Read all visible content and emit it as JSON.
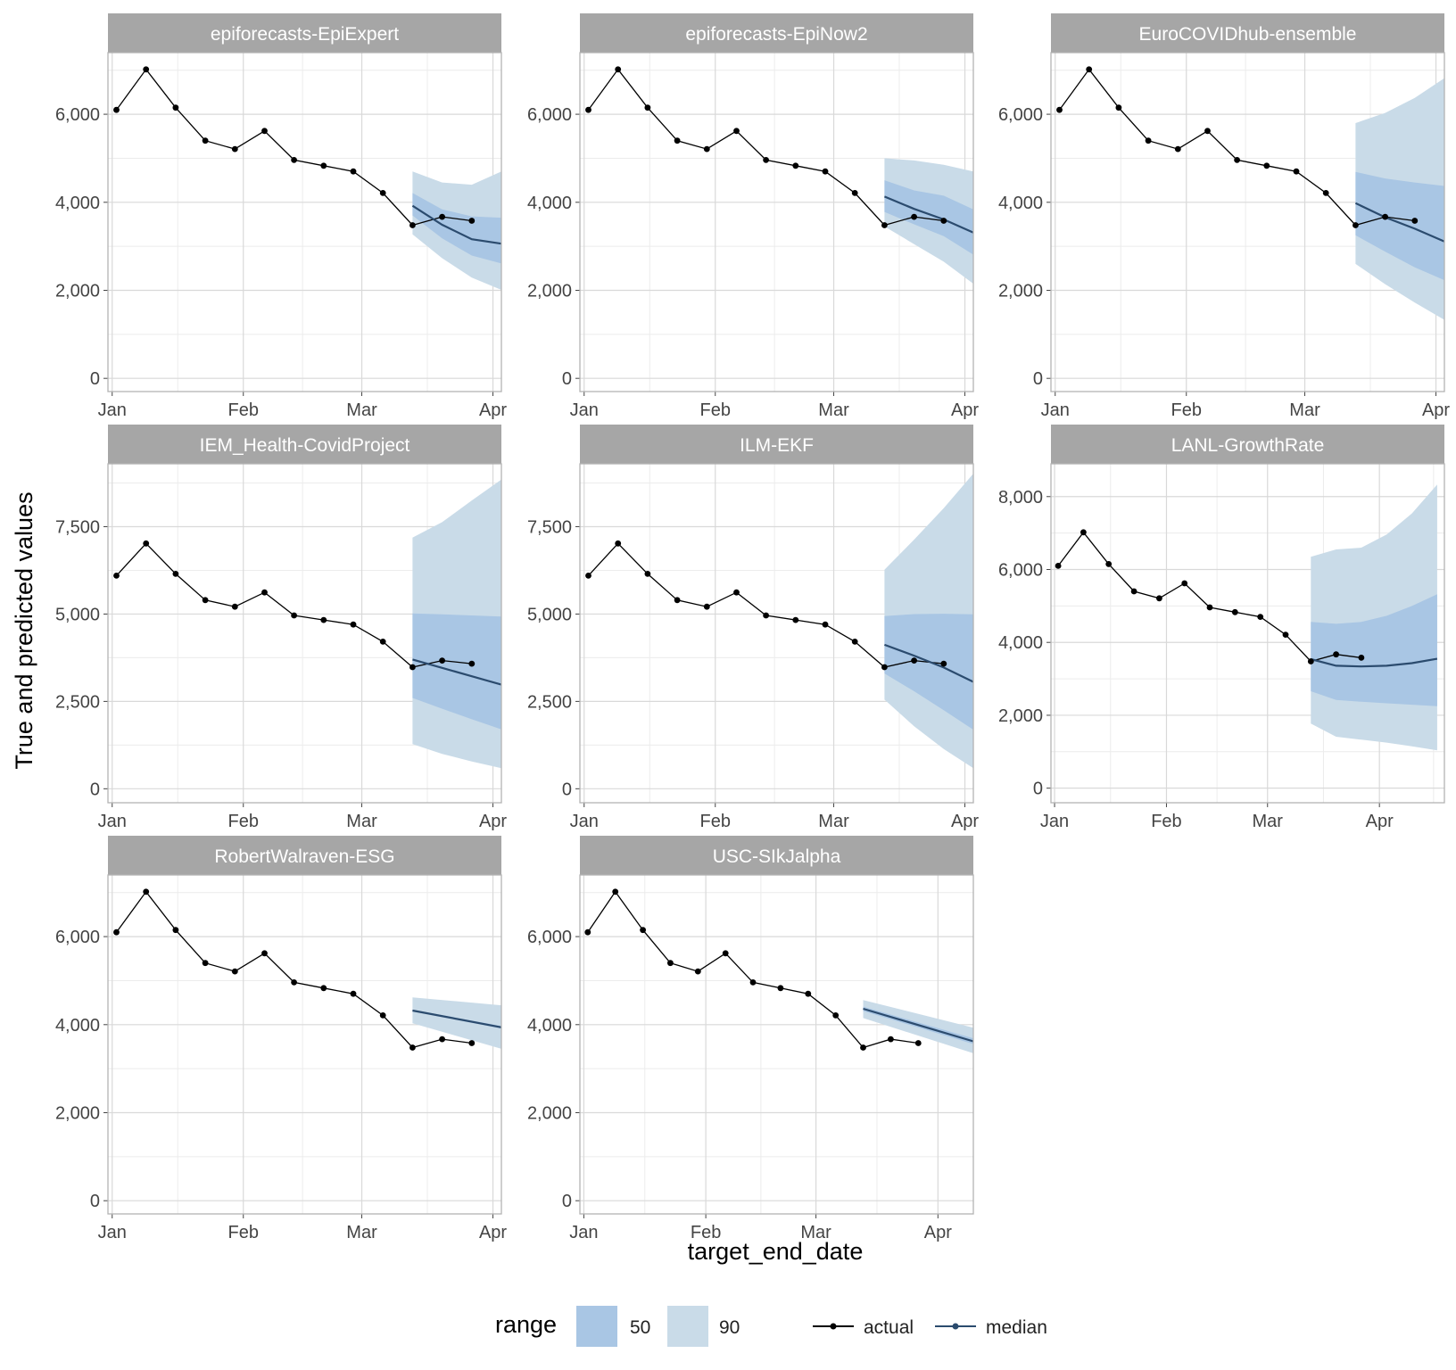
{
  "figure": {
    "ylabel": "True and predicted values",
    "xlabel": "target_end_date",
    "legend": {
      "range_title": "range",
      "range_items": [
        "50",
        "90"
      ],
      "line_items": [
        "actual",
        "median"
      ],
      "placement": "bottom"
    },
    "colors": {
      "band50": "#a9c6e4",
      "band90": "#c9dbe8",
      "actual": "#000000",
      "median": "#2b4b6e",
      "strip": "#a6a6a6",
      "grid": "#d9d9d9"
    }
  },
  "chart_data": {
    "type": "line",
    "facets_layout": "3 columns x 3 rows (8 panels)",
    "actual": {
      "x": [
        "2021-01-02",
        "2021-01-09",
        "2021-01-16",
        "2021-01-23",
        "2021-01-30",
        "2021-02-06",
        "2021-02-13",
        "2021-02-20",
        "2021-02-27",
        "2021-03-06",
        "2021-03-13",
        "2021-03-20",
        "2021-03-27"
      ],
      "y": [
        6100,
        7020,
        6150,
        5400,
        5210,
        5620,
        4960,
        4830,
        4700,
        4210,
        3480,
        3670,
        3580
      ]
    },
    "panels": [
      {
        "title": "epiforecasts-EpiExpert",
        "x_ticks": [
          "Jan",
          "Feb",
          "Mar",
          "Apr"
        ],
        "xlim": [
          "2020-12-31",
          "2021-04-03"
        ],
        "y_ticks": [
          0,
          2000,
          4000,
          6000
        ],
        "y_tick_labels": [
          "0",
          "2,000",
          "4,000",
          "6,000"
        ],
        "ylim": [
          -300,
          7400
        ],
        "forecast": {
          "x": [
            "2021-03-13",
            "2021-03-20",
            "2021-03-27",
            "2021-04-03"
          ],
          "median": [
            3920,
            3490,
            3160,
            3060
          ],
          "q25": [
            3700,
            3180,
            2790,
            2610
          ],
          "q75": [
            4210,
            3840,
            3680,
            3650
          ],
          "q05": [
            3270,
            2730,
            2290,
            2010
          ],
          "q95": [
            4700,
            4450,
            4400,
            4700
          ]
        }
      },
      {
        "title": "epiforecasts-EpiNow2",
        "x_ticks": [
          "Jan",
          "Feb",
          "Mar",
          "Apr"
        ],
        "xlim": [
          "2020-12-31",
          "2021-04-03"
        ],
        "y_ticks": [
          0,
          2000,
          4000,
          6000
        ],
        "y_tick_labels": [
          "0",
          "2,000",
          "4,000",
          "6,000"
        ],
        "ylim": [
          -300,
          7400
        ],
        "forecast": {
          "x": [
            "2021-03-13",
            "2021-03-20",
            "2021-03-27",
            "2021-04-03"
          ],
          "median": [
            4130,
            3850,
            3610,
            3310
          ],
          "q25": [
            3780,
            3500,
            3230,
            2810
          ],
          "q75": [
            4500,
            4270,
            4150,
            3840
          ],
          "q05": [
            3450,
            3050,
            2650,
            2150
          ],
          "q95": [
            5000,
            4950,
            4850,
            4700
          ]
        }
      },
      {
        "title": "EuroCOVIDhub-ensemble",
        "x_ticks": [
          "Jan",
          "Feb",
          "Mar",
          "Apr"
        ],
        "xlim": [
          "2020-12-31",
          "2021-04-03"
        ],
        "y_ticks": [
          0,
          2000,
          4000,
          6000
        ],
        "y_tick_labels": [
          "0",
          "2,000",
          "4,000",
          "6,000"
        ],
        "ylim": [
          -300,
          7400
        ],
        "forecast": {
          "x": [
            "2021-03-13",
            "2021-03-20",
            "2021-03-27",
            "2021-04-03"
          ],
          "median": [
            3980,
            3660,
            3400,
            3110
          ],
          "q25": [
            3250,
            2880,
            2520,
            2230
          ],
          "q75": [
            4690,
            4540,
            4450,
            4370
          ],
          "q05": [
            2600,
            2140,
            1720,
            1330
          ],
          "q95": [
            5800,
            6030,
            6370,
            6820
          ]
        }
      },
      {
        "title": "IEM_Health-CovidProject",
        "x_ticks": [
          "Jan",
          "Feb",
          "Mar",
          "Apr"
        ],
        "xlim": [
          "2020-12-31",
          "2021-04-03"
        ],
        "y_ticks": [
          0,
          2500,
          5000,
          7500
        ],
        "y_tick_labels": [
          "0",
          "2,500",
          "5,000",
          "7,500"
        ],
        "ylim": [
          -400,
          9300
        ],
        "forecast": {
          "x": [
            "2021-03-13",
            "2021-03-20",
            "2021-03-27",
            "2021-04-03"
          ],
          "median": [
            3700,
            3460,
            3220,
            2980
          ],
          "q25": [
            2600,
            2290,
            1990,
            1700
          ],
          "q75": [
            5020,
            4990,
            4960,
            4930
          ],
          "q05": [
            1280,
            1000,
            780,
            590
          ],
          "q95": [
            7190,
            7630,
            8250,
            8850
          ]
        }
      },
      {
        "title": "ILM-EKF",
        "x_ticks": [
          "Jan",
          "Feb",
          "Mar",
          "Apr"
        ],
        "xlim": [
          "2020-12-31",
          "2021-04-03"
        ],
        "y_ticks": [
          0,
          2500,
          5000,
          7500
        ],
        "y_tick_labels": [
          "0",
          "2,500",
          "5,000",
          "7,500"
        ],
        "ylim": [
          -400,
          9300
        ],
        "forecast": {
          "x": [
            "2021-03-13",
            "2021-03-20",
            "2021-03-27",
            "2021-04-03"
          ],
          "median": [
            4120,
            3810,
            3470,
            3060
          ],
          "q25": [
            3300,
            2790,
            2250,
            1690
          ],
          "q75": [
            4940,
            5000,
            5010,
            4990
          ],
          "q05": [
            2550,
            1790,
            1140,
            590
          ],
          "q95": [
            6270,
            7130,
            8030,
            9020
          ]
        }
      },
      {
        "title": "LANL-GrowthRate",
        "x_ticks": [
          "Jan",
          "Feb",
          "Mar",
          "Apr"
        ],
        "xlim": [
          "2020-12-31",
          "2021-04-19"
        ],
        "y_ticks": [
          0,
          2000,
          4000,
          6000,
          8000
        ],
        "y_tick_labels": [
          "0",
          "2,000",
          "4,000",
          "6,000",
          "8,000"
        ],
        "ylim": [
          -400,
          8900
        ],
        "forecast": {
          "x": [
            "2021-03-13",
            "2021-03-20",
            "2021-03-27",
            "2021-04-03",
            "2021-04-10",
            "2021-04-17"
          ],
          "median": [
            3540,
            3360,
            3340,
            3360,
            3430,
            3550
          ],
          "q25": [
            2660,
            2420,
            2370,
            2330,
            2290,
            2250
          ],
          "q75": [
            4560,
            4510,
            4560,
            4730,
            5000,
            5320
          ],
          "q05": [
            1770,
            1410,
            1330,
            1250,
            1150,
            1040
          ],
          "q95": [
            6350,
            6550,
            6600,
            6960,
            7540,
            8330
          ]
        }
      },
      {
        "title": "RobertWalraven-ESG",
        "x_ticks": [
          "Jan",
          "Feb",
          "Mar",
          "Apr"
        ],
        "xlim": [
          "2020-12-31",
          "2021-04-03"
        ],
        "y_ticks": [
          0,
          2000,
          4000,
          6000
        ],
        "y_tick_labels": [
          "0",
          "2,000",
          "4,000",
          "6,000"
        ],
        "ylim": [
          -300,
          7400
        ],
        "forecast": {
          "x": [
            "2021-03-13",
            "2021-04-03"
          ],
          "median": [
            4320,
            3940
          ],
          "q25": [
            4300,
            3910
          ],
          "q75": [
            4340,
            3970
          ],
          "q05": [
            4030,
            3450
          ],
          "q95": [
            4620,
            4440
          ]
        }
      },
      {
        "title": "USC-SIkJalpha",
        "x_ticks": [
          "Jan",
          "Feb",
          "Mar",
          "Apr"
        ],
        "xlim": [
          "2020-12-31",
          "2021-04-10"
        ],
        "y_ticks": [
          0,
          2000,
          4000,
          6000
        ],
        "y_tick_labels": [
          "0",
          "2,000",
          "4,000",
          "6,000"
        ],
        "ylim": [
          -300,
          7400
        ],
        "forecast": {
          "x": [
            "2021-03-13",
            "2021-04-10"
          ],
          "median": [
            4360,
            3620
          ],
          "q25": [
            4310,
            3560
          ],
          "q75": [
            4410,
            3690
          ],
          "q05": [
            4150,
            3350
          ],
          "q95": [
            4560,
            3930
          ]
        }
      }
    ]
  }
}
